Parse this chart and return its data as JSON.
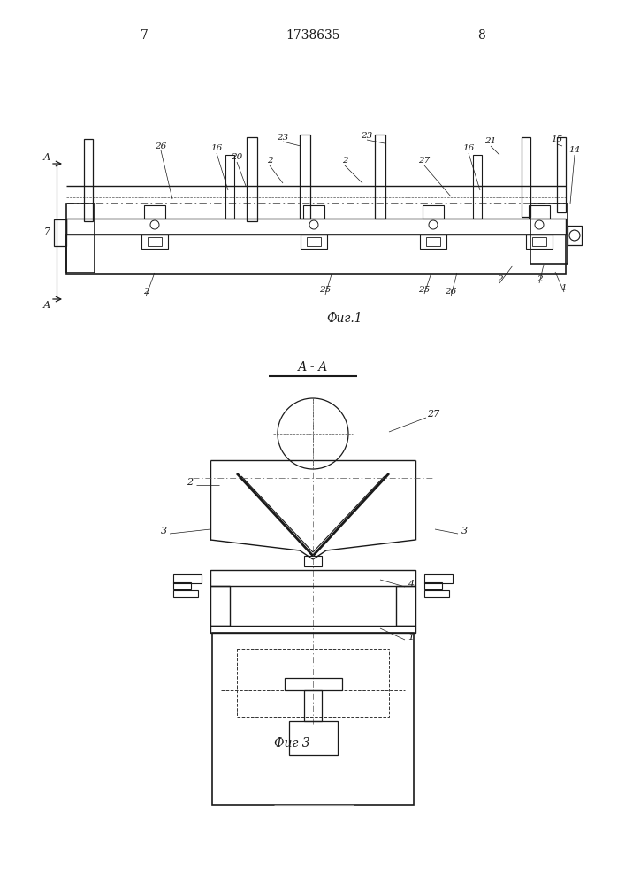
{
  "page_number_left": "7",
  "page_number_right": "8",
  "patent_number": "1738635",
  "fig1_caption": "Фиг.1",
  "fig3_caption": "Фиг 3",
  "section_label": "А - А",
  "bg_color": "#ffffff",
  "line_color": "#1a1a1a",
  "gray": "#555555"
}
